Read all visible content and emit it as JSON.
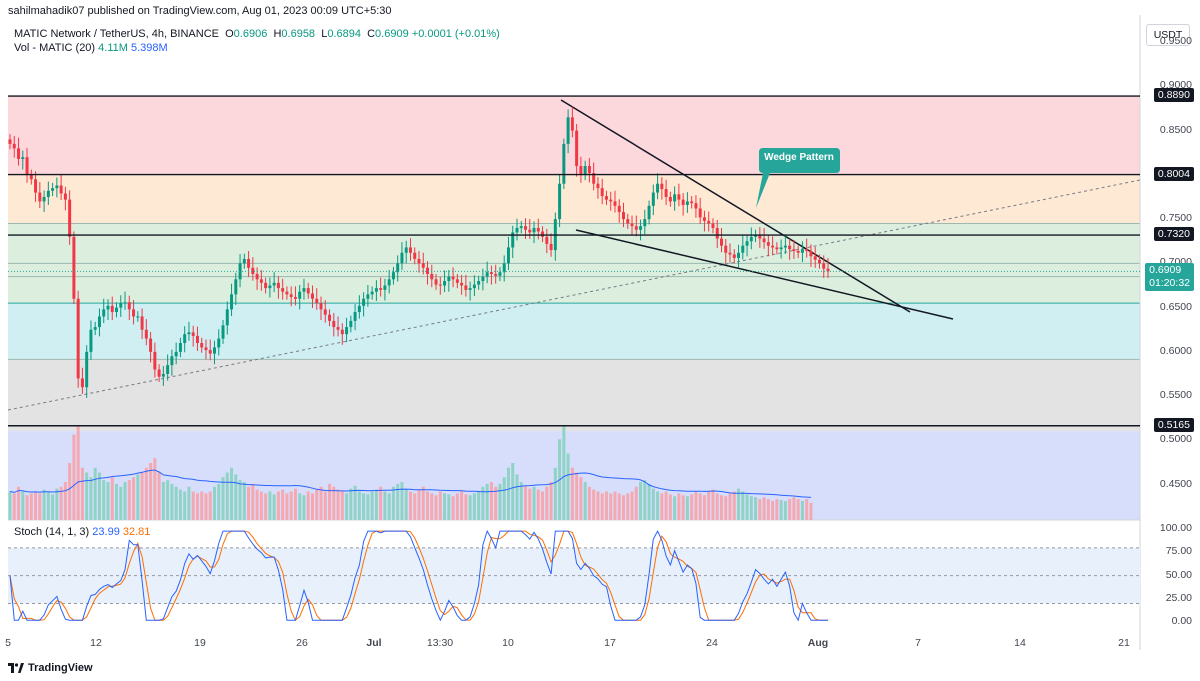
{
  "publish_line": "sahilmahadik07 published on TradingView.com, Aug 01, 2023 00:09 UTC+5:30",
  "symbol": {
    "name": "MATIC Network / TetherUS, 4h, BINANCE",
    "ohlc": [
      {
        "k": "O",
        "v": "0.6906"
      },
      {
        "k": "H",
        "v": "0.6958"
      },
      {
        "k": "L",
        "v": "0.6894"
      },
      {
        "k": "C",
        "v": "0.6909"
      }
    ],
    "change": "+0.0001 (+0.01%)"
  },
  "volume_legend": {
    "label": "Vol - MATIC (20)",
    "v1": "4.11M",
    "v2": "5.398M"
  },
  "stoch_legend": {
    "label": "Stoch (14, 1, 3)",
    "k": "23.99",
    "d": "32.81"
  },
  "currency_button": "USDT",
  "price_axis": [
    "0.9500",
    "0.9000",
    "0.8500",
    "0.8000",
    "0.7500",
    "0.7000",
    "0.6500",
    "0.6000",
    "0.5500",
    "0.5000",
    "0.4500"
  ],
  "stoch_axis": [
    "100.00",
    "75.00",
    "50.00",
    "25.00",
    "0.00"
  ],
  "level_badges": [
    {
      "label": "0.8890",
      "value": 0.889
    },
    {
      "label": "0.8004",
      "value": 0.8004
    },
    {
      "label": "0.7320",
      "value": 0.732
    },
    {
      "label": "0.5165",
      "value": 0.5165
    }
  ],
  "current_price": {
    "label": "0.6909",
    "countdown": "01:20:32",
    "value": 0.6909
  },
  "time_axis": [
    "5",
    "12",
    "19",
    "26",
    "Jul",
    "13:30",
    "10",
    "17",
    "24",
    "Aug",
    "7",
    "14",
    "21"
  ],
  "annotation": "Wedge Pattern",
  "footer_brand": "TradingView",
  "colors": {
    "up": "#089981",
    "down": "#f23645",
    "zone_red": "#fcd8dc",
    "zone_orange": "#fde9d4",
    "zone_green": "#dcefdf",
    "zone_cyan": "#cfeff3",
    "zone_gray": "#e3e3e3",
    "zone_blue": "#d6defb",
    "annotation_bg": "#26a69a"
  },
  "chart_data": {
    "type": "candlestick",
    "price_range": [
      0.41,
      0.975
    ],
    "fib_levels": [
      0.889,
      0.8004,
      0.745,
      0.732,
      0.7,
      0.685,
      0.655,
      0.5915,
      0.5165,
      0.5105
    ],
    "closes": [
      0.835,
      0.83,
      0.818,
      0.82,
      0.8,
      0.795,
      0.78,
      0.77,
      0.775,
      0.782,
      0.785,
      0.788,
      0.779,
      0.772,
      0.73,
      0.66,
      0.57,
      0.56,
      0.6,
      0.625,
      0.628,
      0.64,
      0.648,
      0.652,
      0.645,
      0.65,
      0.655,
      0.656,
      0.648,
      0.64,
      0.64,
      0.625,
      0.615,
      0.6,
      0.58,
      0.572,
      0.575,
      0.585,
      0.595,
      0.6,
      0.61,
      0.62,
      0.622,
      0.618,
      0.61,
      0.605,
      0.602,
      0.598,
      0.605,
      0.615,
      0.63,
      0.648,
      0.665,
      0.682,
      0.7,
      0.705,
      0.695,
      0.688,
      0.682,
      0.678,
      0.672,
      0.675,
      0.678,
      0.672,
      0.668,
      0.665,
      0.662,
      0.66,
      0.668,
      0.672,
      0.666,
      0.66,
      0.655,
      0.648,
      0.642,
      0.635,
      0.628,
      0.625,
      0.62,
      0.628,
      0.635,
      0.645,
      0.652,
      0.66,
      0.665,
      0.668,
      0.672,
      0.67,
      0.675,
      0.682,
      0.69,
      0.7,
      0.712,
      0.718,
      0.712,
      0.705,
      0.7,
      0.695,
      0.688,
      0.682,
      0.676,
      0.675,
      0.68,
      0.685,
      0.682,
      0.678,
      0.675,
      0.67,
      0.672,
      0.676,
      0.68,
      0.685,
      0.69,
      0.688,
      0.686,
      0.69,
      0.7,
      0.718,
      0.735,
      0.74,
      0.742,
      0.738,
      0.735,
      0.74,
      0.736,
      0.73,
      0.722,
      0.715,
      0.75,
      0.79,
      0.835,
      0.865,
      0.85,
      0.81,
      0.8,
      0.81,
      0.802,
      0.79,
      0.785,
      0.776,
      0.772,
      0.77,
      0.765,
      0.758,
      0.75,
      0.745,
      0.742,
      0.738,
      0.742,
      0.75,
      0.765,
      0.78,
      0.79,
      0.784,
      0.775,
      0.77,
      0.778,
      0.772,
      0.766,
      0.77,
      0.768,
      0.762,
      0.752,
      0.748,
      0.745,
      0.74,
      0.728,
      0.72,
      0.712,
      0.71,
      0.706,
      0.712,
      0.72,
      0.725,
      0.73,
      0.732,
      0.728,
      0.724,
      0.72,
      0.718,
      0.716,
      0.718,
      0.72,
      0.716,
      0.714,
      0.712,
      0.716,
      0.714,
      0.708,
      0.704,
      0.7,
      0.694,
      0.6909
    ],
    "volumes": [
      0.3,
      0.28,
      0.35,
      0.3,
      0.26,
      0.28,
      0.3,
      0.28,
      0.32,
      0.3,
      0.27,
      0.33,
      0.35,
      0.4,
      0.6,
      0.9,
      1.0,
      0.55,
      0.5,
      0.45,
      0.55,
      0.5,
      0.42,
      0.4,
      0.45,
      0.38,
      0.35,
      0.4,
      0.42,
      0.45,
      0.48,
      0.5,
      0.55,
      0.6,
      0.65,
      0.5,
      0.4,
      0.42,
      0.38,
      0.35,
      0.32,
      0.3,
      0.35,
      0.3,
      0.28,
      0.3,
      0.28,
      0.3,
      0.35,
      0.38,
      0.45,
      0.5,
      0.55,
      0.48,
      0.42,
      0.4,
      0.35,
      0.38,
      0.32,
      0.3,
      0.28,
      0.3,
      0.27,
      0.3,
      0.32,
      0.28,
      0.3,
      0.33,
      0.28,
      0.26,
      0.3,
      0.28,
      0.32,
      0.35,
      0.3,
      0.38,
      0.35,
      0.32,
      0.3,
      0.28,
      0.33,
      0.36,
      0.3,
      0.28,
      0.27,
      0.3,
      0.32,
      0.35,
      0.3,
      0.28,
      0.35,
      0.38,
      0.4,
      0.33,
      0.3,
      0.28,
      0.32,
      0.35,
      0.3,
      0.28,
      0.26,
      0.3,
      0.28,
      0.27,
      0.25,
      0.28,
      0.3,
      0.27,
      0.26,
      0.28,
      0.3,
      0.35,
      0.38,
      0.4,
      0.35,
      0.38,
      0.45,
      0.55,
      0.6,
      0.48,
      0.4,
      0.36,
      0.33,
      0.35,
      0.32,
      0.3,
      0.35,
      0.4,
      0.55,
      0.85,
      1.0,
      0.7,
      0.55,
      0.5,
      0.45,
      0.4,
      0.35,
      0.32,
      0.3,
      0.28,
      0.3,
      0.28,
      0.3,
      0.28,
      0.26,
      0.28,
      0.3,
      0.35,
      0.4,
      0.42,
      0.38,
      0.33,
      0.3,
      0.28,
      0.3,
      0.27,
      0.25,
      0.28,
      0.26,
      0.25,
      0.27,
      0.3,
      0.28,
      0.26,
      0.3,
      0.32,
      0.28,
      0.26,
      0.25,
      0.28,
      0.3,
      0.33,
      0.3,
      0.27,
      0.25,
      0.24,
      0.22,
      0.24,
      0.22,
      0.2,
      0.22,
      0.21,
      0.2,
      0.22,
      0.24,
      0.22,
      0.2,
      0.22,
      0.18
    ],
    "stoch_range": [
      -15,
      110
    ]
  }
}
